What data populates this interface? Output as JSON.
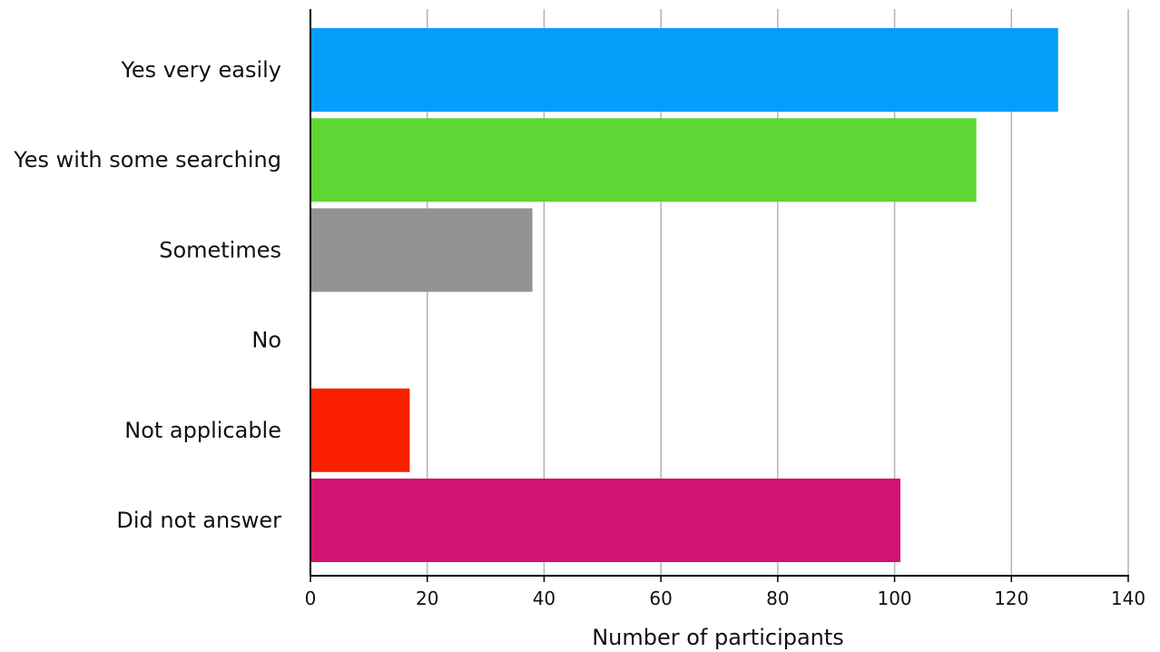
{
  "chart_data": {
    "type": "bar",
    "orientation": "horizontal",
    "title": "",
    "xlabel": "Number of participants",
    "ylabel": "",
    "categories": [
      "Yes very easily",
      "Yes with some searching",
      "Sometimes",
      "No",
      "Not applicable",
      "Did not answer"
    ],
    "values": [
      128,
      114,
      38,
      0,
      17,
      101
    ],
    "colors": [
      "#069DFB",
      "#5ED634",
      "#929292",
      "#ffffff",
      "#FA2000",
      "#D01471"
    ],
    "xlim": [
      0,
      140
    ],
    "xticks": [
      "0",
      "20",
      "40",
      "60",
      "80",
      "100",
      "120",
      "140"
    ],
    "tick_values": [
      0,
      20,
      40,
      60,
      80,
      100,
      120,
      140
    ],
    "grid": true,
    "legend": "none"
  }
}
